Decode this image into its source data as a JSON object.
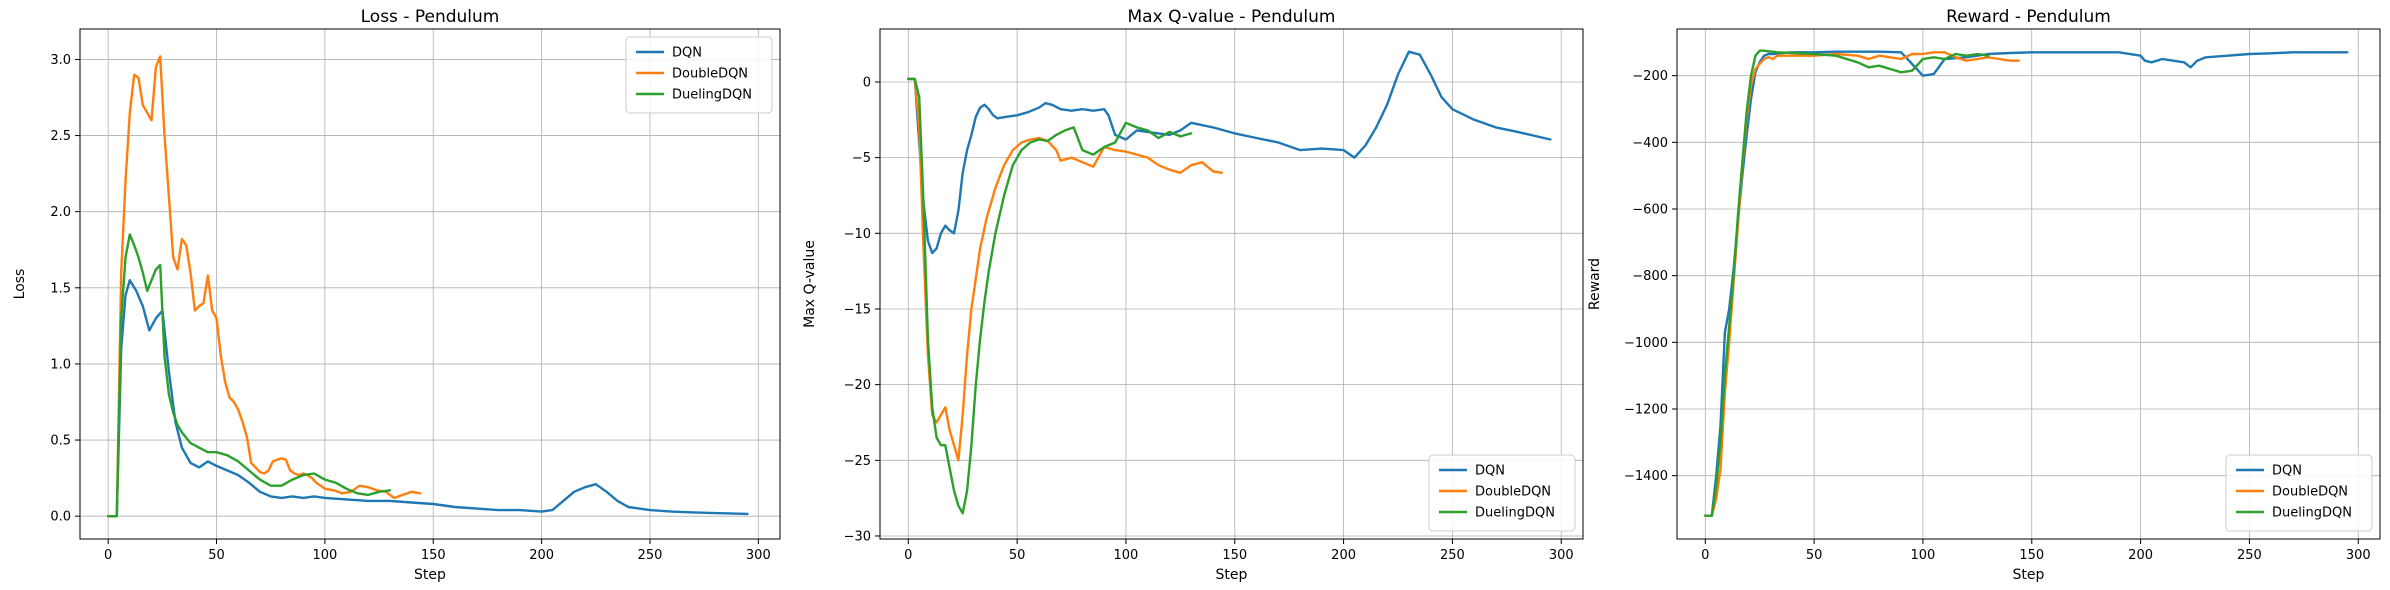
{
  "colors": {
    "DQN": "#1f77b4",
    "DoubleDQN": "#ff7f0e",
    "DuelingDQN": "#2ca02c"
  },
  "chart_data": [
    {
      "type": "line",
      "title": "Loss - Pendulum",
      "xlabel": "Step",
      "ylabel": "Loss",
      "xlim": [
        -13,
        310
      ],
      "ylim": [
        -0.15,
        3.2
      ],
      "xticks": [
        0,
        50,
        100,
        150,
        200,
        250,
        300
      ],
      "yticks": [
        0.0,
        0.5,
        1.0,
        1.5,
        2.0,
        2.5,
        3.0
      ],
      "ytick_labels": [
        "0.0",
        "0.5",
        "1.0",
        "1.5",
        "2.0",
        "2.5",
        "3.0"
      ],
      "grid": true,
      "legend": "top-right",
      "series": [
        {
          "name": "DQN",
          "x": [
            0,
            4,
            6,
            8,
            10,
            13,
            16,
            19,
            22,
            25,
            28,
            31,
            34,
            38,
            42,
            46,
            50,
            55,
            60,
            65,
            70,
            75,
            80,
            85,
            90,
            95,
            100,
            110,
            120,
            130,
            140,
            150,
            160,
            170,
            180,
            190,
            200,
            205,
            210,
            215,
            220,
            225,
            230,
            235,
            240,
            250,
            260,
            270,
            280,
            295
          ],
          "values": [
            0,
            0,
            1.1,
            1.45,
            1.55,
            1.48,
            1.38,
            1.22,
            1.3,
            1.35,
            0.95,
            0.62,
            0.45,
            0.35,
            0.32,
            0.36,
            0.33,
            0.3,
            0.27,
            0.22,
            0.16,
            0.13,
            0.12,
            0.13,
            0.12,
            0.13,
            0.12,
            0.11,
            0.1,
            0.1,
            0.09,
            0.08,
            0.06,
            0.05,
            0.04,
            0.04,
            0.03,
            0.04,
            0.1,
            0.16,
            0.19,
            0.21,
            0.16,
            0.1,
            0.06,
            0.04,
            0.03,
            0.025,
            0.02,
            0.015
          ]
        },
        {
          "name": "DoubleDQN",
          "x": [
            0,
            4,
            6,
            8,
            10,
            12,
            14,
            16,
            18,
            20,
            22,
            24,
            26,
            28,
            30,
            32,
            34,
            36,
            38,
            40,
            42,
            44,
            46,
            48,
            50,
            52,
            54,
            56,
            58,
            60,
            62,
            64,
            66,
            68,
            70,
            72,
            74,
            76,
            78,
            80,
            82,
            84,
            86,
            88,
            90,
            92,
            94,
            96,
            98,
            100,
            104,
            108,
            112,
            116,
            120,
            124,
            128,
            132,
            136,
            140,
            144
          ],
          "values": [
            0,
            0,
            1.6,
            2.2,
            2.65,
            2.9,
            2.88,
            2.7,
            2.65,
            2.6,
            2.95,
            3.02,
            2.5,
            2.1,
            1.7,
            1.62,
            1.82,
            1.78,
            1.6,
            1.35,
            1.38,
            1.4,
            1.58,
            1.35,
            1.3,
            1.05,
            0.88,
            0.78,
            0.75,
            0.7,
            0.62,
            0.52,
            0.35,
            0.32,
            0.29,
            0.28,
            0.3,
            0.36,
            0.37,
            0.38,
            0.37,
            0.3,
            0.28,
            0.27,
            0.28,
            0.27,
            0.25,
            0.22,
            0.2,
            0.18,
            0.17,
            0.15,
            0.16,
            0.2,
            0.19,
            0.17,
            0.16,
            0.12,
            0.14,
            0.16,
            0.15
          ]
        },
        {
          "name": "DuelingDQN",
          "x": [
            0,
            4,
            6,
            8,
            10,
            12,
            14,
            16,
            18,
            20,
            22,
            24,
            26,
            28,
            30,
            32,
            34,
            38,
            42,
            46,
            50,
            55,
            60,
            65,
            70,
            75,
            80,
            85,
            90,
            95,
            100,
            105,
            110,
            115,
            120,
            125,
            130
          ],
          "values": [
            0,
            0,
            1.3,
            1.7,
            1.85,
            1.78,
            1.7,
            1.6,
            1.48,
            1.55,
            1.62,
            1.65,
            1.05,
            0.8,
            0.68,
            0.6,
            0.55,
            0.48,
            0.45,
            0.42,
            0.42,
            0.4,
            0.36,
            0.3,
            0.24,
            0.2,
            0.2,
            0.24,
            0.27,
            0.28,
            0.24,
            0.22,
            0.18,
            0.15,
            0.14,
            0.16,
            0.17
          ]
        }
      ]
    },
    {
      "type": "line",
      "title": "Max Q-value - Pendulum",
      "xlabel": "Step",
      "ylabel": "Max Q-value",
      "xlim": [
        -13,
        310
      ],
      "ylim": [
        -30.2,
        3.5
      ],
      "xticks": [
        0,
        50,
        100,
        150,
        200,
        250,
        300
      ],
      "yticks": [
        -30,
        -25,
        -20,
        -15,
        -10,
        -5,
        0
      ],
      "ytick_labels": [
        "−30",
        "−25",
        "−20",
        "−15",
        "−10",
        "−5",
        "0"
      ],
      "grid": true,
      "legend": "bottom-right",
      "series": [
        {
          "name": "DQN",
          "x": [
            0,
            3,
            5,
            7,
            9,
            11,
            13,
            15,
            17,
            19,
            21,
            23,
            25,
            27,
            29,
            31,
            33,
            35,
            37,
            39,
            41,
            45,
            50,
            55,
            60,
            63,
            66,
            70,
            75,
            80,
            85,
            90,
            92,
            95,
            100,
            105,
            110,
            115,
            120,
            125,
            130,
            140,
            150,
            160,
            170,
            180,
            190,
            200,
            205,
            210,
            215,
            220,
            225,
            230,
            235,
            240,
            245,
            250,
            260,
            270,
            280,
            295
          ],
          "values": [
            0.2,
            0.2,
            -4,
            -8,
            -10.5,
            -11.3,
            -11,
            -10,
            -9.5,
            -9.8,
            -10,
            -8.5,
            -6,
            -4.5,
            -3.5,
            -2.3,
            -1.7,
            -1.5,
            -1.8,
            -2.2,
            -2.4,
            -2.3,
            -2.2,
            -2.0,
            -1.7,
            -1.4,
            -1.5,
            -1.8,
            -1.9,
            -1.8,
            -1.9,
            -1.8,
            -2.2,
            -3.5,
            -3.8,
            -3.2,
            -3.3,
            -3.4,
            -3.5,
            -3.2,
            -2.7,
            -3.0,
            -3.4,
            -3.7,
            -4.0,
            -4.5,
            -4.4,
            -4.5,
            -5.0,
            -4.2,
            -3.0,
            -1.5,
            0.5,
            2.0,
            1.8,
            0.5,
            -1.0,
            -1.8,
            -2.5,
            -3.0,
            -3.3,
            -3.8
          ]
        },
        {
          "name": "DoubleDQN",
          "x": [
            0,
            3,
            5,
            7,
            9,
            11,
            13,
            15,
            17,
            19,
            21,
            23,
            25,
            27,
            29,
            31,
            33,
            36,
            40,
            44,
            48,
            52,
            56,
            60,
            64,
            68,
            70,
            75,
            80,
            85,
            90,
            95,
            100,
            105,
            110,
            115,
            120,
            125,
            130,
            135,
            140,
            144
          ],
          "values": [
            0.2,
            0.2,
            -3,
            -11,
            -18,
            -22,
            -22.5,
            -22,
            -21.5,
            -23,
            -24,
            -25,
            -22,
            -18,
            -15,
            -13,
            -11,
            -9,
            -7,
            -5.5,
            -4.5,
            -4.0,
            -3.8,
            -3.7,
            -3.9,
            -4.5,
            -5.2,
            -5.0,
            -5.3,
            -5.6,
            -4.3,
            -4.5,
            -4.6,
            -4.8,
            -5.0,
            -5.5,
            -5.8,
            -6.0,
            -5.5,
            -5.3,
            -5.9,
            -6.0
          ]
        },
        {
          "name": "DuelingDQN",
          "x": [
            0,
            3,
            5,
            7,
            9,
            11,
            13,
            15,
            17,
            19,
            21,
            23,
            25,
            27,
            29,
            31,
            33,
            35,
            37,
            40,
            44,
            48,
            52,
            56,
            60,
            64,
            68,
            72,
            76,
            80,
            85,
            90,
            95,
            100,
            105,
            110,
            115,
            120,
            125,
            130
          ],
          "values": [
            0.2,
            0.2,
            -1,
            -8,
            -17,
            -21.5,
            -23.5,
            -24,
            -24,
            -25.5,
            -27,
            -28,
            -28.5,
            -27,
            -24,
            -20,
            -17,
            -14.5,
            -12.5,
            -10,
            -7.5,
            -5.5,
            -4.5,
            -4.0,
            -3.8,
            -3.9,
            -3.5,
            -3.2,
            -3.0,
            -4.5,
            -4.8,
            -4.3,
            -4.0,
            -2.7,
            -3.0,
            -3.2,
            -3.7,
            -3.3,
            -3.6,
            -3.4
          ]
        }
      ]
    },
    {
      "type": "line",
      "title": "Reward - Pendulum",
      "xlabel": "Step",
      "ylabel": "Reward",
      "xlim": [
        -13,
        310
      ],
      "ylim": [
        -1590,
        -60
      ],
      "xticks": [
        0,
        50,
        100,
        150,
        200,
        250,
        300
      ],
      "yticks": [
        -1400,
        -1200,
        -1000,
        -800,
        -600,
        -400,
        -200
      ],
      "ytick_labels": [
        "−1400",
        "−1200",
        "−1000",
        "−800",
        "−600",
        "−400",
        "−200"
      ],
      "grid": true,
      "legend": "bottom-right",
      "series": [
        {
          "name": "DQN",
          "x": [
            0,
            3,
            5,
            7,
            9,
            11,
            13,
            15,
            17,
            19,
            21,
            23,
            25,
            27,
            29,
            31,
            35,
            40,
            50,
            60,
            80,
            90,
            95,
            100,
            105,
            110,
            120,
            130,
            140,
            150,
            160,
            170,
            180,
            190,
            200,
            202,
            205,
            210,
            215,
            220,
            223,
            226,
            230,
            240,
            250,
            260,
            270,
            280,
            295
          ],
          "values": [
            -1520,
            -1520,
            -1400,
            -1250,
            -970,
            -900,
            -780,
            -640,
            -500,
            -380,
            -270,
            -190,
            -160,
            -140,
            -135,
            -135,
            -132,
            -130,
            -130,
            -128,
            -128,
            -130,
            -165,
            -200,
            -195,
            -150,
            -145,
            -135,
            -132,
            -130,
            -130,
            -130,
            -130,
            -130,
            -140,
            -155,
            -160,
            -150,
            -155,
            -160,
            -175,
            -155,
            -145,
            -140,
            -135,
            -133,
            -130,
            -130,
            -130
          ]
        },
        {
          "name": "DoubleDQN",
          "x": [
            0,
            3,
            5,
            7,
            9,
            11,
            13,
            15,
            17,
            19,
            21,
            23,
            25,
            27,
            29,
            31,
            33,
            40,
            50,
            60,
            70,
            75,
            80,
            85,
            90,
            95,
            100,
            105,
            110,
            115,
            120,
            125,
            130,
            135,
            140,
            144
          ],
          "values": [
            -1520,
            -1520,
            -1470,
            -1380,
            -1150,
            -1000,
            -820,
            -650,
            -470,
            -330,
            -230,
            -180,
            -165,
            -150,
            -145,
            -150,
            -140,
            -140,
            -140,
            -135,
            -140,
            -150,
            -140,
            -145,
            -150,
            -135,
            -135,
            -130,
            -130,
            -145,
            -155,
            -150,
            -145,
            -150,
            -155,
            -155
          ]
        },
        {
          "name": "DuelingDQN",
          "x": [
            0,
            3,
            5,
            7,
            9,
            11,
            13,
            15,
            17,
            19,
            21,
            23,
            25,
            27,
            29,
            31,
            33,
            40,
            50,
            60,
            70,
            75,
            80,
            85,
            90,
            95,
            100,
            105,
            110,
            115,
            120,
            125,
            130
          ],
          "values": [
            -1520,
            -1520,
            -1430,
            -1300,
            -1100,
            -950,
            -800,
            -620,
            -460,
            -310,
            -200,
            -140,
            -125,
            -125,
            -127,
            -128,
            -130,
            -132,
            -135,
            -140,
            -160,
            -175,
            -170,
            -180,
            -190,
            -185,
            -150,
            -145,
            -150,
            -135,
            -140,
            -135,
            -140
          ]
        }
      ]
    }
  ]
}
